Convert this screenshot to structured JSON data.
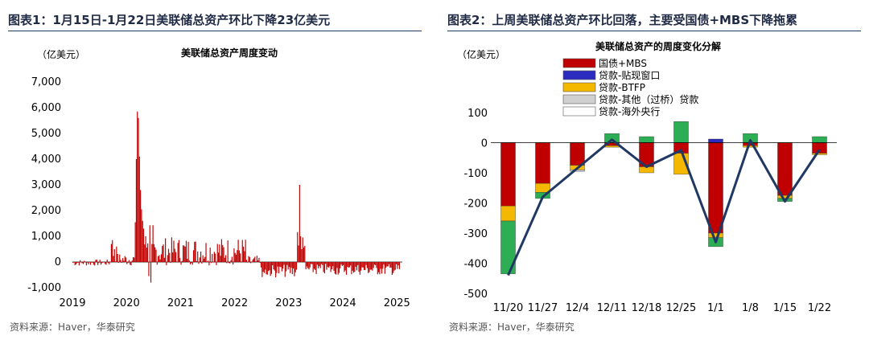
{
  "left": {
    "panel_title": "图表1：1月15日-1月22日美联储总资产环比下降23亿美元",
    "source": "资料来源：Haver，华泰研究",
    "chart_data": {
      "type": "bar",
      "title": "美联储总资产周度变动",
      "unit_label": "（亿美元）",
      "xlabel": "",
      "ylabel": "",
      "ylim": [
        -1000,
        7000
      ],
      "yticks": [
        -1000,
        0,
        1000,
        2000,
        3000,
        4000,
        5000,
        6000,
        7000
      ],
      "ytick_labels": [
        "-1,000",
        "0",
        "1,000",
        "2,000",
        "3,000",
        "4,000",
        "5,000",
        "6,000",
        "7,000"
      ],
      "xlim": [
        2019.0,
        2025.1
      ],
      "xticks": [
        2019,
        2020,
        2021,
        2022,
        2023,
        2024,
        2025
      ],
      "xtick_labels": [
        "2019",
        "2020",
        "2021",
        "2022",
        "2023",
        "2024",
        "2025"
      ],
      "color": "#c00000",
      "grid": false,
      "legend": "none"
    }
  },
  "right": {
    "panel_title": "图表2：上周美联储总资产环比回落，主要受国债+MBS下降拖累",
    "source": "资料来源：Haver，华泰研究",
    "chart_data": {
      "type": "bar",
      "stacked": true,
      "title": "美联储总资产的周度变化分解",
      "unit_label": "（亿美元）",
      "xlabel": "",
      "ylabel": "",
      "categories": [
        "11/20",
        "11/27",
        "12/4",
        "12/11",
        "12/18",
        "12/25",
        "1/1",
        "1/8",
        "1/15",
        "1/22"
      ],
      "ylim": [
        -500,
        100
      ],
      "yticks": [
        -500,
        -400,
        -300,
        -200,
        -100,
        0,
        100
      ],
      "ytick_labels": [
        "-500",
        "-400",
        "-300",
        "-200",
        "-100",
        "0",
        "100"
      ],
      "grid": false,
      "legend": "top-left",
      "series": [
        {
          "name": "国债+MBS",
          "color": "#c00000",
          "values": [
            -210,
            -135,
            -75,
            -10,
            -80,
            -35,
            -300,
            -10,
            -175,
            -35
          ]
        },
        {
          "name": "贷款-贴现窗口",
          "color": "#2b2bbf",
          "values": [
            0,
            0,
            0,
            0,
            0,
            0,
            12,
            0,
            0,
            0
          ]
        },
        {
          "name": "贷款-BTFP",
          "color": "#f5b800",
          "values": [
            -50,
            -30,
            -15,
            -5,
            -20,
            -70,
            -15,
            -5,
            -10,
            -5
          ]
        },
        {
          "name": "贷款-其他（过桥）贷款",
          "color": "#d0d0d0",
          "values": [
            0,
            0,
            -5,
            0,
            0,
            0,
            0,
            0,
            0,
            0
          ]
        },
        {
          "name": "贷款-海外央行",
          "color": "#ffffff",
          "values": [
            0,
            0,
            0,
            0,
            0,
            0,
            0,
            0,
            0,
            0
          ]
        },
        {
          "name": "",
          "color": "#2eae54",
          "values": [
            -175,
            -20,
            0,
            30,
            20,
            70,
            -30,
            30,
            -10,
            20
          ]
        }
      ],
      "total": {
        "color": "#1f3864",
        "values": [
          -440,
          -180,
          -85,
          10,
          -80,
          -25,
          -330,
          8,
          -195,
          -23
        ]
      }
    }
  }
}
